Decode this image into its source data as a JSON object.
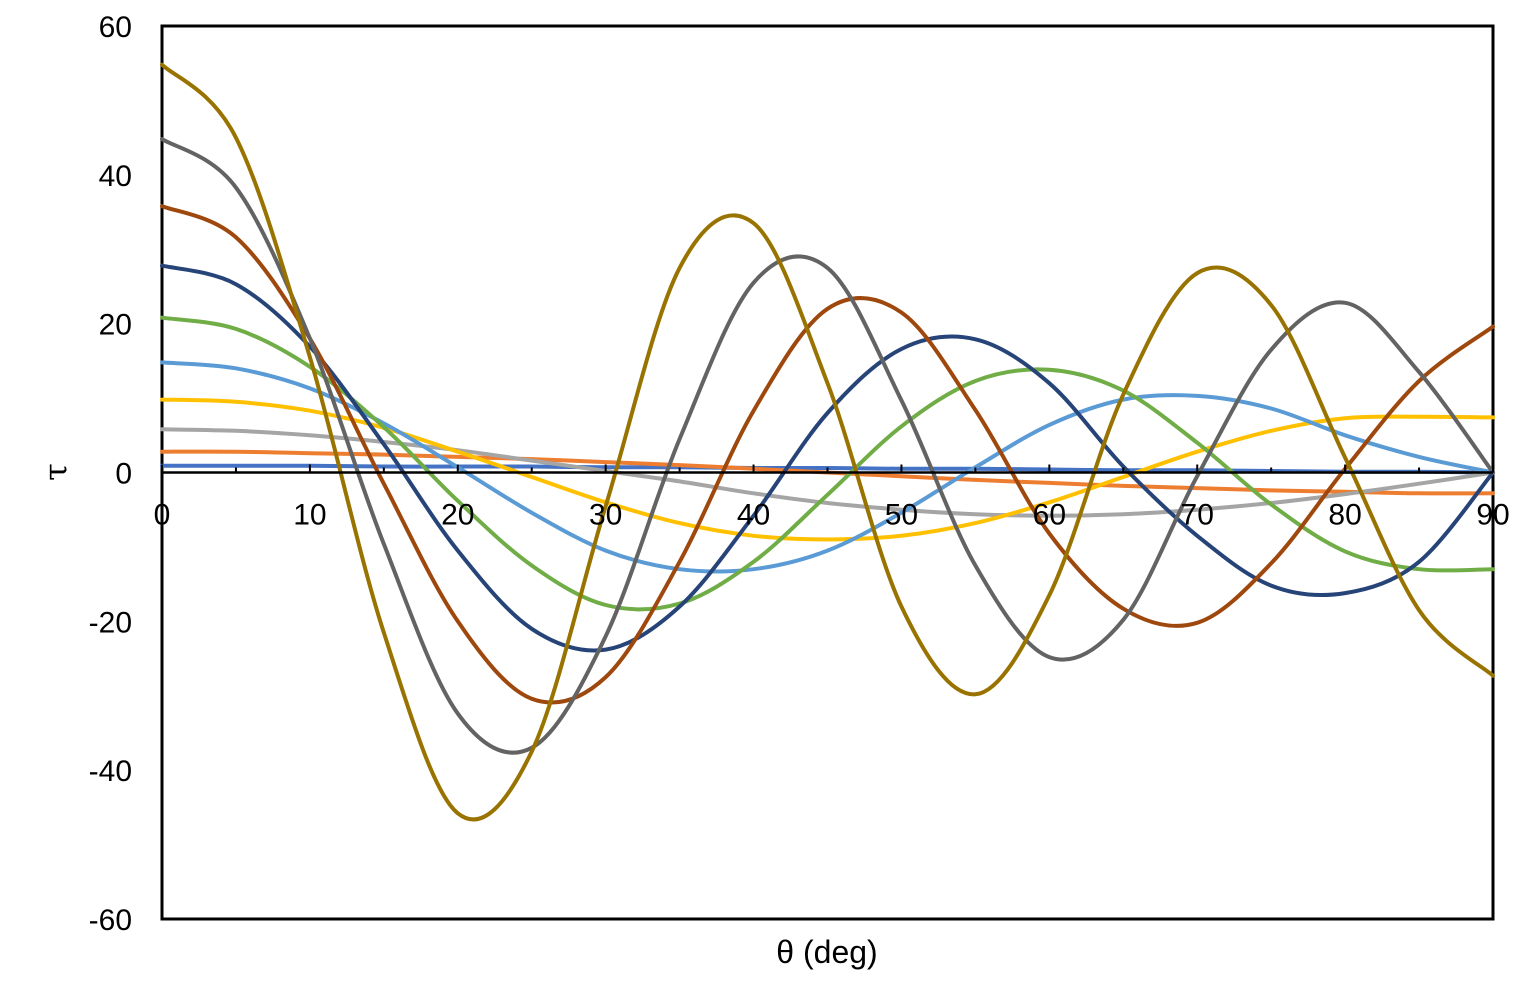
{
  "chart_data": {
    "type": "line",
    "xlabel": "θ (deg)",
    "ylabel": "τ",
    "xlim": [
      0,
      90
    ],
    "ylim": [
      -60,
      60
    ],
    "x_ticks": [
      "0",
      "10",
      "20",
      "30",
      "40",
      "50",
      "60",
      "70",
      "80",
      "90"
    ],
    "y_ticks": [
      "60",
      "40",
      "20",
      "0",
      "-20",
      "-40",
      "-60"
    ],
    "grid": false,
    "legend": "none",
    "x": [
      0,
      5,
      10,
      15,
      20,
      25,
      30,
      35,
      40,
      45,
      50,
      55,
      60,
      65,
      70,
      75,
      80,
      85,
      90
    ],
    "series": [
      {
        "color": "#4472C4",
        "values": [
          0.9,
          0.9,
          0.9,
          0.8,
          0.8,
          0.8,
          0.7,
          0.7,
          0.6,
          0.6,
          0.5,
          0.5,
          0.4,
          0.3,
          0.3,
          0.2,
          0.1,
          0.1,
          0.0
        ]
      },
      {
        "color": "#ED7D31",
        "values": [
          2.8,
          2.8,
          2.6,
          2.4,
          2.1,
          1.8,
          1.4,
          1.0,
          0.5,
          0.0,
          -0.5,
          -1.0,
          -1.4,
          -1.8,
          -2.1,
          -2.4,
          -2.6,
          -2.8,
          -2.8
        ]
      },
      {
        "color": "#A5A5A5",
        "values": [
          5.8,
          5.6,
          5.0,
          4.1,
          3.0,
          1.6,
          0.2,
          -1.2,
          -2.8,
          -4.1,
          -5.0,
          -5.6,
          -5.8,
          -5.6,
          -5.0,
          -4.1,
          -2.9,
          -1.5,
          0.0
        ]
      },
      {
        "color": "#FFC000",
        "values": [
          9.8,
          9.5,
          8.3,
          6.0,
          2.8,
          -0.6,
          -4.0,
          -6.8,
          -8.5,
          -9.0,
          -8.5,
          -6.8,
          -4.0,
          -0.6,
          2.8,
          5.6,
          7.3,
          7.5,
          7.4
        ]
      },
      {
        "color": "#5B9BD5",
        "values": [
          14.8,
          14.0,
          11.3,
          6.6,
          0.7,
          -5.4,
          -10.5,
          -13.0,
          -13.0,
          -10.5,
          -5.4,
          0.7,
          6.4,
          9.8,
          10.3,
          8.6,
          5.0,
          2.1,
          0.0
        ]
      },
      {
        "color": "#70AD47",
        "values": [
          20.8,
          19.3,
          14.2,
          6.1,
          -3.8,
          -12.5,
          -17.8,
          -17.6,
          -12.0,
          -3.0,
          6.2,
          12.3,
          13.8,
          11.0,
          4.0,
          -4.3,
          -10.6,
          -13.0,
          -13.0
        ]
      },
      {
        "color": "#264478",
        "values": [
          27.8,
          25.3,
          16.9,
          3.8,
          -10.5,
          -21.0,
          -23.8,
          -18.0,
          -5.8,
          8.0,
          16.6,
          17.9,
          12.0,
          0.8,
          -8.5,
          -15.2,
          -16.2,
          -12.0,
          0.0
        ]
      },
      {
        "color": "#9E480E",
        "values": [
          35.8,
          31.6,
          18.0,
          -1.5,
          -20.0,
          -30.4,
          -27.5,
          -12.0,
          8.3,
          22.0,
          21.5,
          8.4,
          -8.2,
          -18.3,
          -20.2,
          -12.2,
          0.5,
          12.3,
          19.6
        ]
      },
      {
        "color": "#636363",
        "values": [
          44.8,
          38.3,
          18.0,
          -9.6,
          -32.4,
          -37.0,
          -22.0,
          4.5,
          25.5,
          27.5,
          9.7,
          -12.5,
          -24.8,
          -19.8,
          -0.5,
          16.5,
          22.8,
          13.5,
          0.0
        ]
      },
      {
        "color": "#997300",
        "values": [
          54.8,
          45.0,
          15.5,
          -21.5,
          -45.8,
          -37.5,
          -4.5,
          27.5,
          33.5,
          12.0,
          -18.0,
          -29.8,
          -16.5,
          10.5,
          26.8,
          22.5,
          2.0,
          -18.5,
          -27.3
        ]
      }
    ]
  }
}
